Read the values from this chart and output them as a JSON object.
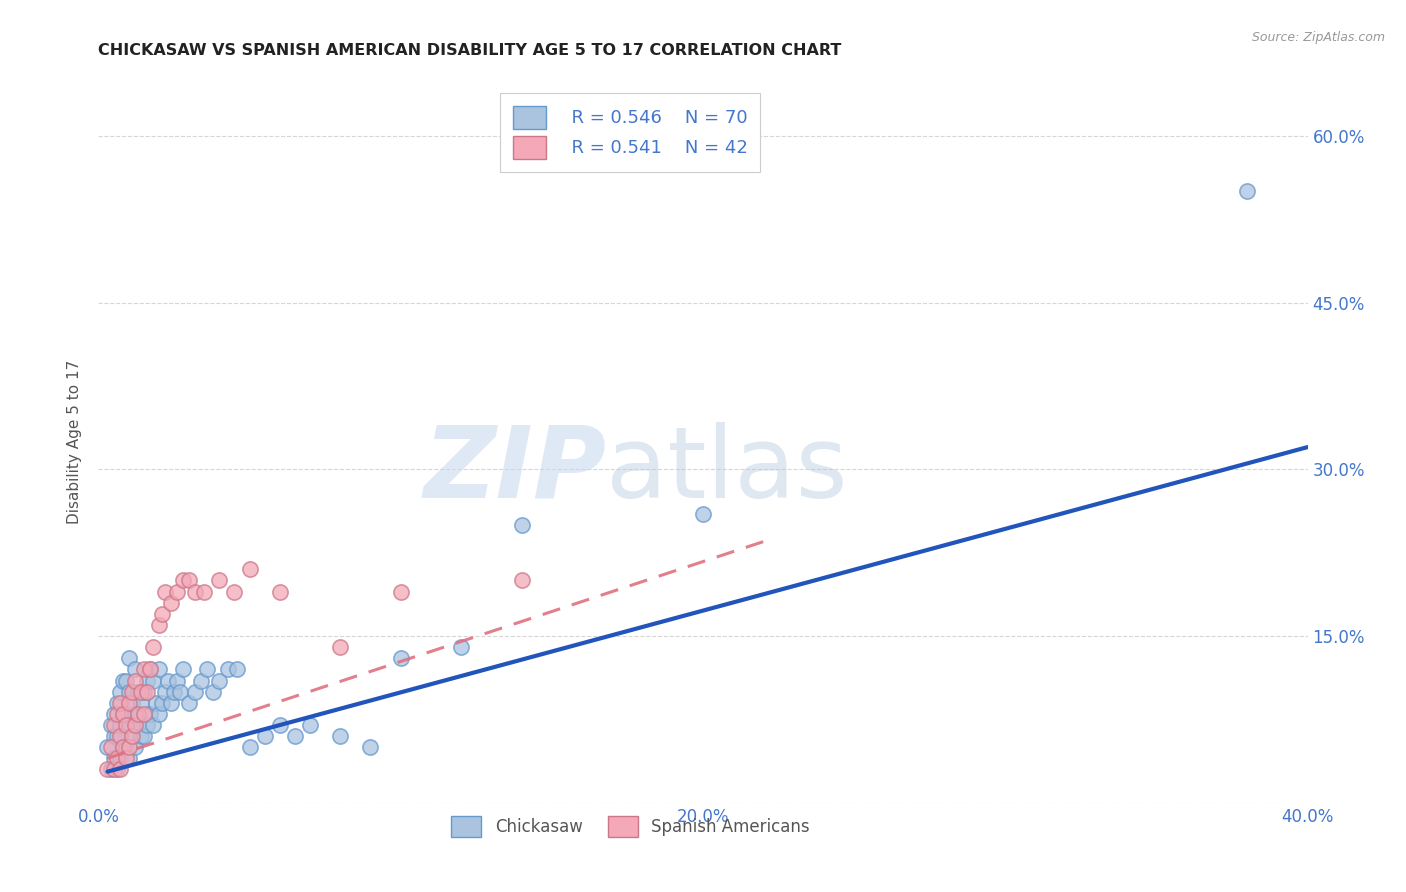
{
  "title": "CHICKASAW VS SPANISH AMERICAN DISABILITY AGE 5 TO 17 CORRELATION CHART",
  "source": "Source: ZipAtlas.com",
  "ylabel": "Disability Age 5 to 17",
  "xlim": [
    0.0,
    0.4
  ],
  "ylim": [
    0.0,
    0.65
  ],
  "xticks": [
    0.0,
    0.1,
    0.2,
    0.3,
    0.4
  ],
  "xticklabels": [
    "0.0%",
    "",
    "20.0%",
    "",
    "40.0%"
  ],
  "yticks_right": [
    0.15,
    0.3,
    0.45,
    0.6
  ],
  "ytick_labels_right": [
    "15.0%",
    "30.0%",
    "45.0%",
    "60.0%"
  ],
  "yticks_hidden": [
    0.0,
    0.15,
    0.3,
    0.45,
    0.6
  ],
  "legend_r1": "R = 0.546",
  "legend_n1": "N = 70",
  "legend_r2": "R = 0.541",
  "legend_n2": "N = 42",
  "color_chickasaw": "#aac4e0",
  "color_spanish": "#f4a8b8",
  "color_blue_line": "#2255bb",
  "color_pink_line": "#e07080",
  "color_text_blue": "#4477cc",
  "color_title": "#222222",
  "color_source": "#999999",
  "color_grid": "#cccccc",
  "watermark_zip": "ZIP",
  "watermark_atlas": "atlas",
  "chickasaw_x": [
    0.003,
    0.004,
    0.004,
    0.005,
    0.005,
    0.005,
    0.006,
    0.006,
    0.006,
    0.007,
    0.007,
    0.007,
    0.008,
    0.008,
    0.008,
    0.009,
    0.009,
    0.009,
    0.01,
    0.01,
    0.01,
    0.01,
    0.011,
    0.011,
    0.012,
    0.012,
    0.012,
    0.013,
    0.013,
    0.014,
    0.014,
    0.015,
    0.015,
    0.016,
    0.016,
    0.017,
    0.017,
    0.018,
    0.018,
    0.019,
    0.02,
    0.02,
    0.021,
    0.022,
    0.023,
    0.024,
    0.025,
    0.026,
    0.027,
    0.028,
    0.03,
    0.032,
    0.034,
    0.036,
    0.038,
    0.04,
    0.043,
    0.046,
    0.05,
    0.055,
    0.06,
    0.065,
    0.07,
    0.08,
    0.09,
    0.1,
    0.12,
    0.14,
    0.2,
    0.38
  ],
  "chickasaw_y": [
    0.05,
    0.03,
    0.07,
    0.04,
    0.06,
    0.08,
    0.03,
    0.06,
    0.09,
    0.04,
    0.07,
    0.1,
    0.05,
    0.08,
    0.11,
    0.05,
    0.08,
    0.11,
    0.04,
    0.07,
    0.1,
    0.13,
    0.06,
    0.09,
    0.05,
    0.08,
    0.12,
    0.07,
    0.1,
    0.06,
    0.09,
    0.06,
    0.1,
    0.07,
    0.11,
    0.08,
    0.12,
    0.07,
    0.11,
    0.09,
    0.08,
    0.12,
    0.09,
    0.1,
    0.11,
    0.09,
    0.1,
    0.11,
    0.1,
    0.12,
    0.09,
    0.1,
    0.11,
    0.12,
    0.1,
    0.11,
    0.12,
    0.12,
    0.05,
    0.06,
    0.07,
    0.06,
    0.07,
    0.06,
    0.05,
    0.13,
    0.14,
    0.25,
    0.26,
    0.55
  ],
  "spanish_x": [
    0.003,
    0.004,
    0.005,
    0.005,
    0.006,
    0.006,
    0.007,
    0.007,
    0.007,
    0.008,
    0.008,
    0.009,
    0.009,
    0.01,
    0.01,
    0.011,
    0.011,
    0.012,
    0.012,
    0.013,
    0.014,
    0.015,
    0.015,
    0.016,
    0.017,
    0.018,
    0.02,
    0.021,
    0.022,
    0.024,
    0.026,
    0.028,
    0.03,
    0.032,
    0.035,
    0.04,
    0.045,
    0.05,
    0.06,
    0.08,
    0.1,
    0.14
  ],
  "spanish_y": [
    0.03,
    0.05,
    0.03,
    0.07,
    0.04,
    0.08,
    0.03,
    0.06,
    0.09,
    0.05,
    0.08,
    0.04,
    0.07,
    0.05,
    0.09,
    0.06,
    0.1,
    0.07,
    0.11,
    0.08,
    0.1,
    0.08,
    0.12,
    0.1,
    0.12,
    0.14,
    0.16,
    0.17,
    0.19,
    0.18,
    0.19,
    0.2,
    0.2,
    0.19,
    0.19,
    0.2,
    0.19,
    0.21,
    0.19,
    0.14,
    0.19,
    0.2
  ],
  "blue_line_x": [
    0.003,
    0.4
  ],
  "blue_line_y": [
    0.028,
    0.32
  ],
  "pink_line_x": [
    0.003,
    0.22
  ],
  "pink_line_y": [
    0.04,
    0.235
  ]
}
